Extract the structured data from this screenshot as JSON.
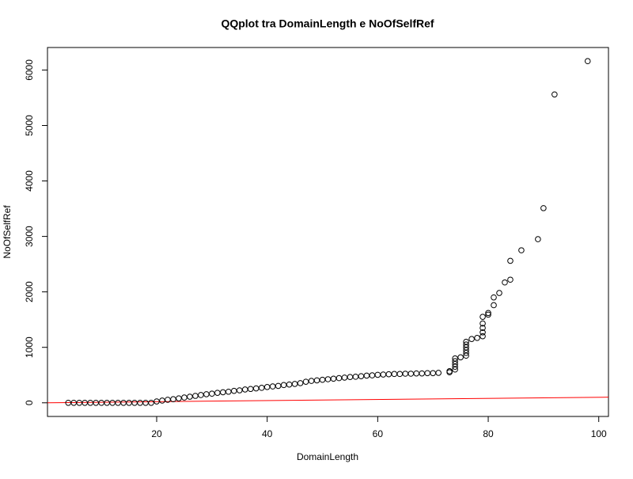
{
  "chart_data": {
    "type": "scatter",
    "title": "QQplot tra DomainLength e NoOfSelfRef",
    "xlabel": "DomainLength",
    "ylabel": "NoOfSelfRef",
    "x": [
      4,
      5,
      6,
      7,
      8,
      9,
      10,
      11,
      12,
      13,
      14,
      15,
      16,
      17,
      18,
      19,
      20,
      21,
      22,
      23,
      24,
      25,
      26,
      27,
      28,
      29,
      30,
      31,
      32,
      33,
      34,
      35,
      36,
      37,
      38,
      39,
      40,
      41,
      42,
      43,
      44,
      45,
      46,
      47,
      48,
      49,
      50,
      51,
      52,
      53,
      54,
      55,
      56,
      57,
      58,
      59,
      60,
      61,
      62,
      63,
      64,
      65,
      66,
      67,
      68,
      69,
      70,
      71,
      73,
      73,
      74,
      74,
      74,
      74,
      74,
      75,
      76,
      76,
      76,
      76,
      76,
      76,
      77,
      78,
      79,
      79,
      79,
      79,
      79,
      80,
      80,
      81,
      81,
      82,
      83,
      84,
      84,
      86,
      89,
      90,
      92,
      98
    ],
    "y": [
      0,
      0,
      0,
      0,
      0,
      0,
      0,
      0,
      0,
      0,
      0,
      0,
      0,
      0,
      0,
      0,
      25,
      40,
      55,
      65,
      80,
      95,
      110,
      125,
      140,
      155,
      165,
      180,
      190,
      200,
      215,
      225,
      240,
      250,
      260,
      270,
      285,
      295,
      305,
      320,
      330,
      340,
      355,
      380,
      395,
      405,
      415,
      425,
      435,
      445,
      455,
      465,
      470,
      480,
      490,
      495,
      505,
      510,
      515,
      520,
      520,
      525,
      525,
      530,
      530,
      535,
      535,
      540,
      550,
      570,
      600,
      650,
      700,
      750,
      800,
      820,
      850,
      900,
      950,
      1000,
      1050,
      1100,
      1150,
      1170,
      1200,
      1270,
      1350,
      1430,
      1550,
      1590,
      1620,
      1760,
      1900,
      1980,
      2170,
      2220,
      2560,
      2750,
      2950,
      3510,
      5560,
      6160
    ],
    "color": "#000000",
    "xlim": [
      0.24,
      101.76
    ],
    "ylim": [
      -246,
      6406
    ],
    "xticks": [
      20,
      40,
      60,
      80,
      100
    ],
    "yticks": [
      0,
      1000,
      2000,
      3000,
      4000,
      5000,
      6000
    ],
    "abline": {
      "intercept": 0,
      "slope": 1,
      "color": "#ff0000"
    }
  }
}
